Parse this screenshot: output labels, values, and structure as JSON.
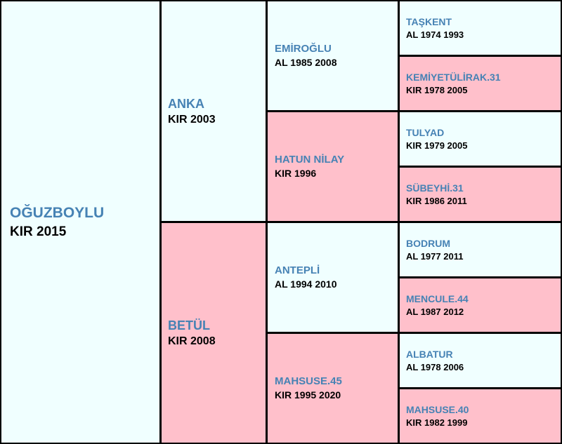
{
  "colors": {
    "male_bg": "#f0ffff",
    "female_bg": "#ffc0cb",
    "name_text": "#4682b4",
    "info_text": "#000000",
    "border": "#000000"
  },
  "pedigree": {
    "subject": {
      "name": "OĞUZBOYLU",
      "info": "KIR 2015"
    },
    "sire": {
      "name": "ANKA",
      "info": "KIR 2003"
    },
    "dam": {
      "name": "BETÜL",
      "info": "KIR 2008"
    },
    "sire_sire": {
      "name": "EMİROĞLU",
      "info": "AL 1985 2008"
    },
    "sire_dam": {
      "name": "HATUN NİLAY",
      "info": "KIR 1996"
    },
    "dam_sire": {
      "name": "ANTEPLİ",
      "info": "AL 1994 2010"
    },
    "dam_dam": {
      "name": "MAHSUSE.45",
      "info": "KIR 1995 2020"
    },
    "sire_sire_sire": {
      "name": "TAŞKENT",
      "info": "AL 1974 1993"
    },
    "sire_sire_dam": {
      "name": "KEMİYETÜLİRAK.31",
      "info": "KIR 1978 2005"
    },
    "sire_dam_sire": {
      "name": "TULYAD",
      "info": "KIR 1979 2005"
    },
    "sire_dam_dam": {
      "name": "SÜBEYHİ.31",
      "info": "KIR 1986 2011"
    },
    "dam_sire_sire": {
      "name": "BODRUM",
      "info": "AL 1977 2011"
    },
    "dam_sire_dam": {
      "name": "MENCULE.44",
      "info": "AL 1987 2012"
    },
    "dam_dam_sire": {
      "name": "ALBATUR",
      "info": "AL 1978 2006"
    },
    "dam_dam_dam": {
      "name": "MAHSUSE.40",
      "info": "KIR 1982 1999"
    }
  }
}
